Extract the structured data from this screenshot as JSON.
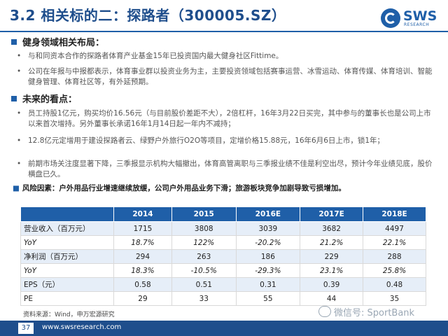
{
  "title": "3.2 相关标的二：探路者（300005.SZ）",
  "logo": {
    "name": "SWS",
    "sub": "RESEARCH"
  },
  "section1": {
    "heading": "健身领域相关布局：",
    "bullets": [
      "与和同资本合作的探路者体育产业基金15年已投资国内最大健身社区Fittime。",
      "公司在年报与中报都表示，体育事业群以投资业务为主，主要投资领域包括赛事运营、冰雪运动、体育传媒、体育培训、智能健身管理、体育社区等，有外延预期。"
    ]
  },
  "section2": {
    "heading": "未来的看点：",
    "bullets": [
      "员工持股1亿元，购买均价16.56元（与目前股价差距不大），2倍杠杆，16年3月22日买完，其中参与的董事长也是公司上市以来首次增持。另外董事长承诺16年1月14日起一年内不减持；",
      "12.8亿元定增用于建设探路者云、绿野户外旅行O2O等项目，定增价格15.88元，16年6月6日上市，锁1年；",
      "前期市场关注度显著下降，三季报显示机构大幅撤出，体育高管离职与三季报业绩不佳是利空出尽，预计今年业绩见底，股价横盘已久。"
    ]
  },
  "risk": "风险因素：户外用品行业增速继续放缓，公司户外用品业务下滑；旅游板块竞争加剧导致亏损增加。",
  "table": {
    "headers": [
      "",
      "2014",
      "2015",
      "2016E",
      "2017E",
      "2018E"
    ],
    "rows": [
      [
        "营业收入（百万元）",
        "1715",
        "3808",
        "3039",
        "3682",
        "4497"
      ],
      [
        "YoY",
        "18.7%",
        "122%",
        "-20.2%",
        "21.2%",
        "22.1%"
      ],
      [
        "净利润（百万元）",
        "294",
        "263",
        "186",
        "229",
        "288"
      ],
      [
        "YoY",
        "18.3%",
        "-10.5%",
        "-29.3%",
        "23.1%",
        "25.8%"
      ],
      [
        "EPS（元）",
        "0.58",
        "0.51",
        "0.31",
        "0.39",
        "0.48"
      ],
      [
        "PE",
        "29",
        "33",
        "55",
        "44",
        "35"
      ]
    ]
  },
  "source": "资料来源：Wind，申万宏源研究",
  "watermark": "微信号: SportBank",
  "footer": {
    "page": "37",
    "url": "www.swsresearch.com"
  },
  "colors": {
    "brand": "#1f5fa8",
    "title": "#1f4e8c",
    "row_alt": "#e6eef8"
  }
}
